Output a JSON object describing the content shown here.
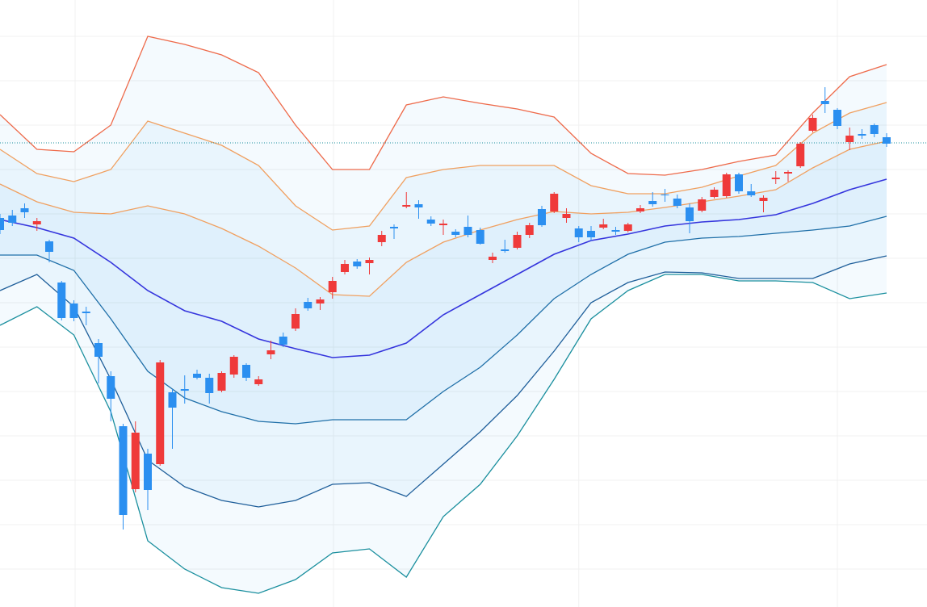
{
  "chart_data": {
    "type": "candlestick",
    "xlim": [
      0,
      75.28
    ],
    "ylim": [
      0,
      752
    ],
    "xticks": [
      6.1,
      27.08,
      47.0,
      68.0
    ],
    "yticks": [
      707,
      652,
      597,
      542,
      487,
      432,
      377,
      322,
      267,
      212,
      157,
      102,
      47
    ],
    "grid": true,
    "up_color": "#ef3a3a",
    "down_color": "#2b8ff0",
    "open": [
      482,
      485,
      494,
      474,
      453,
      402,
      376,
      366,
      327,
      286,
      224,
      146,
      190,
      177,
      266,
      270,
      289,
      284,
      268,
      288,
      300,
      276,
      313,
      335,
      345,
      378,
      376,
      390,
      415,
      428,
      426,
      452,
      471,
      496,
      499,
      480,
      473,
      465,
      471,
      467,
      430,
      443,
      445,
      461,
      493,
      490,
      482,
      469,
      466,
      470,
      467,
      466,
      490,
      503,
      511,
      506,
      495,
      491,
      508,
      509,
      536,
      515,
      503,
      530,
      537,
      546,
      590,
      627,
      616,
      576,
      586,
      597,
      582
    ],
    "high": [
      487,
      492,
      500,
      482,
      455,
      404,
      380,
      372,
      332,
      292,
      227,
      230,
      196,
      306,
      270,
      287,
      294,
      289,
      292,
      312,
      302,
      286,
      330,
      340,
      370,
      383,
      384,
      409,
      430,
      431,
      433,
      466,
      474,
      514,
      504,
      484,
      480,
      468,
      485,
      470,
      439,
      455,
      465,
      476,
      497,
      514,
      494,
      472,
      472,
      481,
      471,
      476,
      498,
      514,
      518,
      511,
      500,
      508,
      520,
      538,
      538,
      524,
      510,
      540,
      541,
      576,
      610,
      644,
      618,
      594,
      592,
      599,
      587
    ],
    "low": [
      462,
      472,
      482,
      466,
      427,
      355,
      354,
      349,
      277,
      230,
      96,
      142,
      120,
      175,
      196,
      252,
      282,
      252,
      266,
      284,
      280,
      274,
      307,
      322,
      342,
      367,
      368,
      382,
      412,
      419,
      412,
      447,
      456,
      494,
      481,
      472,
      461,
      458,
      458,
      449,
      426,
      439,
      443,
      457,
      471,
      488,
      476,
      452,
      454,
      468,
      461,
      464,
      488,
      496,
      502,
      494,
      463,
      489,
      506,
      507,
      512,
      508,
      489,
      524,
      527,
      544,
      588,
      612,
      592,
      566,
      580,
      582,
      570
    ],
    "close": [
      467,
      476,
      489,
      478,
      440,
      358,
      358,
      364,
      310,
      258,
      114,
      216,
      145,
      303,
      247,
      268,
      284,
      265,
      290,
      310,
      284,
      282,
      318,
      325,
      363,
      370,
      381,
      404,
      425,
      422,
      430,
      461,
      469,
      498,
      495,
      475,
      475,
      461,
      461,
      450,
      434,
      441,
      461,
      473,
      473,
      512,
      487,
      458,
      458,
      474,
      465,
      474,
      494,
      499,
      510,
      497,
      478,
      505,
      517,
      536,
      515,
      510,
      507,
      532,
      539,
      574,
      606,
      623,
      596,
      584,
      584,
      586,
      574
    ],
    "bands": {
      "x": [
        0,
        3,
        6,
        9,
        12,
        15,
        18,
        21,
        24,
        27,
        30,
        33,
        36,
        39,
        42,
        45,
        48,
        51,
        54,
        57,
        60,
        63,
        66,
        69,
        72
      ],
      "series": [
        {
          "color": "#ee6a4a",
          "values": [
            610,
            567,
            564,
            597,
            707,
            697,
            684,
            662,
            597,
            542,
            542,
            622,
            632,
            624,
            617,
            607,
            562,
            537,
            535,
            542,
            552,
            560,
            612,
            657,
            672
          ]
        },
        {
          "color": "#f0a060",
          "values": [
            567,
            537,
            527,
            542,
            602,
            587,
            572,
            547,
            497,
            467,
            472,
            532,
            542,
            547,
            547,
            547,
            522,
            512,
            512,
            520,
            534,
            547,
            587,
            612,
            625
          ]
        },
        {
          "color": "#f0a060",
          "values": [
            524,
            502,
            489,
            487,
            497,
            487,
            469,
            447,
            420,
            387,
            385,
            427,
            452,
            467,
            480,
            490,
            487,
            489,
            495,
            502,
            509,
            517,
            544,
            567,
            577
          ]
        },
        {
          "color": "#3535dd",
          "values": [
            480,
            470,
            457,
            427,
            392,
            367,
            354,
            332,
            320,
            309,
            312,
            327,
            362,
            387,
            412,
            437,
            454,
            462,
            472,
            477,
            480,
            486,
            500,
            517,
            530
          ]
        },
        {
          "color": "#1f6fa8",
          "values": [
            436,
            436,
            417,
            357,
            292,
            259,
            242,
            230,
            227,
            232,
            232,
            232,
            267,
            297,
            337,
            382,
            412,
            437,
            452,
            457,
            459,
            463,
            467,
            472,
            484
          ]
        },
        {
          "color": "#1e5e9a",
          "values": [
            392,
            412,
            372,
            282,
            182,
            149,
            132,
            124,
            132,
            152,
            154,
            137,
            177,
            217,
            262,
            317,
            377,
            402,
            415,
            414,
            407,
            407,
            407,
            425,
            435
          ]
        },
        {
          "color": "#1a8f9e",
          "values": [
            349,
            372,
            337,
            242,
            82,
            47,
            24,
            17,
            34,
            67,
            72,
            37,
            112,
            152,
            212,
            282,
            357,
            392,
            412,
            412,
            404,
            404,
            402,
            382,
            389
          ]
        }
      ]
    },
    "last_price": 575,
    "last_price_color": "#1a8f9e"
  }
}
